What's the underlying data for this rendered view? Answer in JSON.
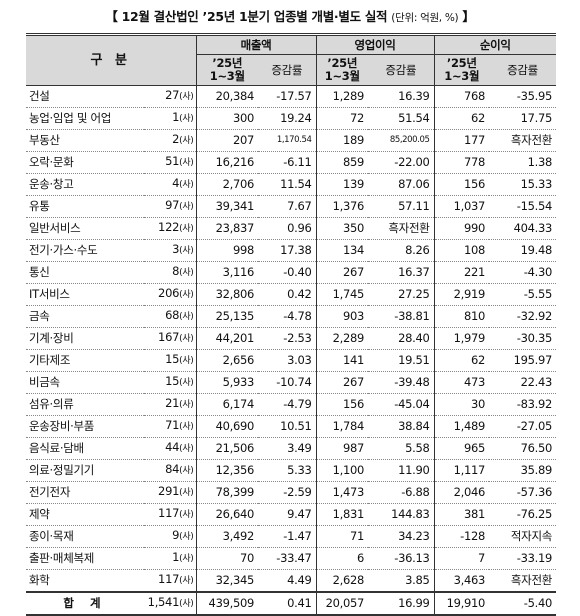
{
  "title": {
    "main": "【 12월 결산법인 ’25년 1분기 업종별 개별·별도 실적",
    "unit": "(단위: 억원, %)",
    "close": "】"
  },
  "header": {
    "gubun": "구  분",
    "groups": [
      "매출액",
      "영업이익",
      "순이익"
    ],
    "period_line1": "’25년",
    "period_line2": "1~3월",
    "change": "증감률"
  },
  "count_suffix": "(사)",
  "rows": [
    {
      "name": "건설",
      "count": "27",
      "sales": "20,384",
      "sales_chg": "-17.57",
      "op": "1,289",
      "op_chg": "16.39",
      "net": "768",
      "net_chg": "-35.95"
    },
    {
      "name": "농업·임업 및 어업",
      "count": "1",
      "sales": "300",
      "sales_chg": "19.24",
      "op": "72",
      "op_chg": "51.54",
      "net": "62",
      "net_chg": "17.75"
    },
    {
      "name": "부동산",
      "count": "2",
      "sales": "207",
      "sales_chg": "1,170.54",
      "op": "189",
      "op_chg": "85,200.05",
      "net": "177",
      "net_chg": "흑자전환"
    },
    {
      "name": "오락·문화",
      "count": "51",
      "sales": "16,216",
      "sales_chg": "-6.11",
      "op": "859",
      "op_chg": "-22.00",
      "net": "778",
      "net_chg": "1.38"
    },
    {
      "name": "운송·창고",
      "count": "4",
      "sales": "2,706",
      "sales_chg": "11.54",
      "op": "139",
      "op_chg": "87.06",
      "net": "156",
      "net_chg": "15.33"
    },
    {
      "name": "유통",
      "count": "97",
      "sales": "39,341",
      "sales_chg": "7.67",
      "op": "1,376",
      "op_chg": "57.11",
      "net": "1,037",
      "net_chg": "-15.54"
    },
    {
      "name": "일반서비스",
      "count": "122",
      "sales": "23,837",
      "sales_chg": "0.96",
      "op": "350",
      "op_chg": "흑자전환",
      "net": "990",
      "net_chg": "404.33"
    },
    {
      "name": "전기·가스·수도",
      "count": "3",
      "sales": "998",
      "sales_chg": "17.38",
      "op": "134",
      "op_chg": "8.26",
      "net": "108",
      "net_chg": "19.48"
    },
    {
      "name": "통신",
      "count": "8",
      "sales": "3,116",
      "sales_chg": "-0.40",
      "op": "267",
      "op_chg": "16.37",
      "net": "221",
      "net_chg": "-4.30"
    },
    {
      "name": "IT서비스",
      "count": "206",
      "sales": "32,806",
      "sales_chg": "0.42",
      "op": "1,745",
      "op_chg": "27.25",
      "net": "2,919",
      "net_chg": "-5.55"
    },
    {
      "name": "금속",
      "count": "68",
      "sales": "25,135",
      "sales_chg": "-4.78",
      "op": "903",
      "op_chg": "-38.81",
      "net": "810",
      "net_chg": "-32.92"
    },
    {
      "name": "기계·장비",
      "count": "167",
      "sales": "44,201",
      "sales_chg": "-2.53",
      "op": "2,289",
      "op_chg": "28.40",
      "net": "1,979",
      "net_chg": "-30.35"
    },
    {
      "name": "기타제조",
      "count": "15",
      "sales": "2,656",
      "sales_chg": "3.03",
      "op": "141",
      "op_chg": "19.51",
      "net": "62",
      "net_chg": "195.97"
    },
    {
      "name": "비금속",
      "count": "15",
      "sales": "5,933",
      "sales_chg": "-10.74",
      "op": "267",
      "op_chg": "-39.48",
      "net": "473",
      "net_chg": "22.43"
    },
    {
      "name": "섬유·의류",
      "count": "21",
      "sales": "6,174",
      "sales_chg": "-4.79",
      "op": "156",
      "op_chg": "-45.04",
      "net": "30",
      "net_chg": "-83.92"
    },
    {
      "name": "운송장비·부품",
      "count": "71",
      "sales": "40,690",
      "sales_chg": "10.51",
      "op": "1,784",
      "op_chg": "38.84",
      "net": "1,489",
      "net_chg": "-27.05"
    },
    {
      "name": "음식료·담배",
      "count": "44",
      "sales": "21,506",
      "sales_chg": "3.49",
      "op": "987",
      "op_chg": "5.58",
      "net": "965",
      "net_chg": "76.50"
    },
    {
      "name": "의료·정밀기기",
      "count": "84",
      "sales": "12,356",
      "sales_chg": "5.33",
      "op": "1,100",
      "op_chg": "11.90",
      "net": "1,117",
      "net_chg": "35.89"
    },
    {
      "name": "전기전자",
      "count": "291",
      "sales": "78,399",
      "sales_chg": "-2.59",
      "op": "1,473",
      "op_chg": "-6.88",
      "net": "2,046",
      "net_chg": "-57.36"
    },
    {
      "name": "제약",
      "count": "117",
      "sales": "26,640",
      "sales_chg": "9.47",
      "op": "1,831",
      "op_chg": "144.83",
      "net": "381",
      "net_chg": "-76.25"
    },
    {
      "name": "종이·목재",
      "count": "9",
      "sales": "3,492",
      "sales_chg": "-1.47",
      "op": "71",
      "op_chg": "34.23",
      "net": "-128",
      "net_chg": "적자지속"
    },
    {
      "name": "출판·매체복제",
      "count": "1",
      "sales": "70",
      "sales_chg": "-33.47",
      "op": "6",
      "op_chg": "-36.13",
      "net": "7",
      "net_chg": "-33.19"
    },
    {
      "name": "화학",
      "count": "117",
      "sales": "32,345",
      "sales_chg": "4.49",
      "op": "2,628",
      "op_chg": "3.85",
      "net": "3,463",
      "net_chg": "흑자전환"
    }
  ],
  "total": {
    "name": "합 계",
    "count": "1,541",
    "sales": "439,509",
    "sales_chg": "0.41",
    "op": "20,057",
    "op_chg": "16.99",
    "net": "19,910",
    "net_chg": "-5.40"
  }
}
